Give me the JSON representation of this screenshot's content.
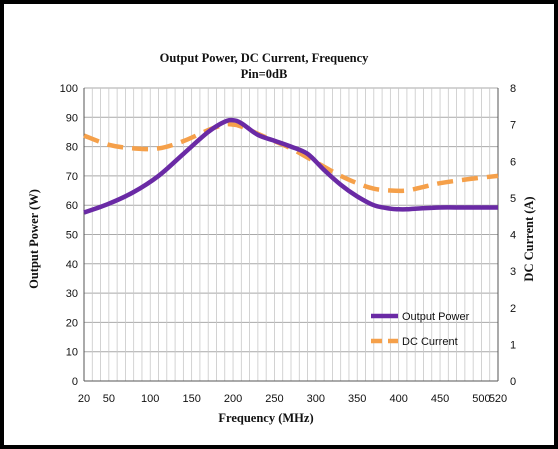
{
  "chart_data": {
    "type": "line",
    "title": "Output Power, DC Current, Frequency",
    "subtitle": "Pin=0dB",
    "xlabel": "Frequency (MHz)",
    "ylabel": "Output Power (W)",
    "y2label": "DC Current (A)",
    "xlim": [
      20,
      520
    ],
    "ylim": [
      0,
      100
    ],
    "y2lim": [
      0,
      8
    ],
    "x_ticks": [
      "20",
      "50",
      "100",
      "150",
      "200",
      "250",
      "300",
      "350",
      "400",
      "450",
      "500",
      "520"
    ],
    "y_ticks": [
      "0",
      "10",
      "20",
      "30",
      "40",
      "50",
      "60",
      "70",
      "80",
      "90",
      "100"
    ],
    "y2_ticks": [
      "0",
      "1",
      "2",
      "3",
      "4",
      "5",
      "6",
      "7",
      "8"
    ],
    "grid": true,
    "legend_position": "bottom-right",
    "series": [
      {
        "name": "Output Power",
        "axis": "left",
        "color": "#6a2aa5",
        "style": "solid",
        "x": [
          20,
          50,
          80,
          110,
          140,
          170,
          190,
          200,
          210,
          230,
          250,
          270,
          290,
          310,
          330,
          350,
          370,
          390,
          400,
          410,
          420,
          450,
          480,
          520
        ],
        "y": [
          57.5,
          60.5,
          64.5,
          70,
          77.5,
          85,
          88.5,
          89,
          88,
          84,
          82,
          80,
          77.5,
          72,
          67,
          63,
          60,
          58.8,
          58.6,
          58.6,
          58.8,
          59.2,
          59.2,
          59.2
        ]
      },
      {
        "name": "DC Current",
        "axis": "right",
        "color": "#f5a04a",
        "style": "dashed",
        "x": [
          20,
          50,
          80,
          110,
          140,
          170,
          190,
          200,
          210,
          230,
          250,
          270,
          290,
          310,
          330,
          350,
          370,
          390,
          410,
          430,
          450,
          480,
          520
        ],
        "y": [
          6.7,
          6.45,
          6.35,
          6.35,
          6.55,
          6.85,
          7.0,
          7.0,
          6.95,
          6.75,
          6.55,
          6.35,
          6.1,
          5.85,
          5.6,
          5.4,
          5.25,
          5.2,
          5.2,
          5.3,
          5.4,
          5.5,
          5.6
        ]
      }
    ]
  }
}
